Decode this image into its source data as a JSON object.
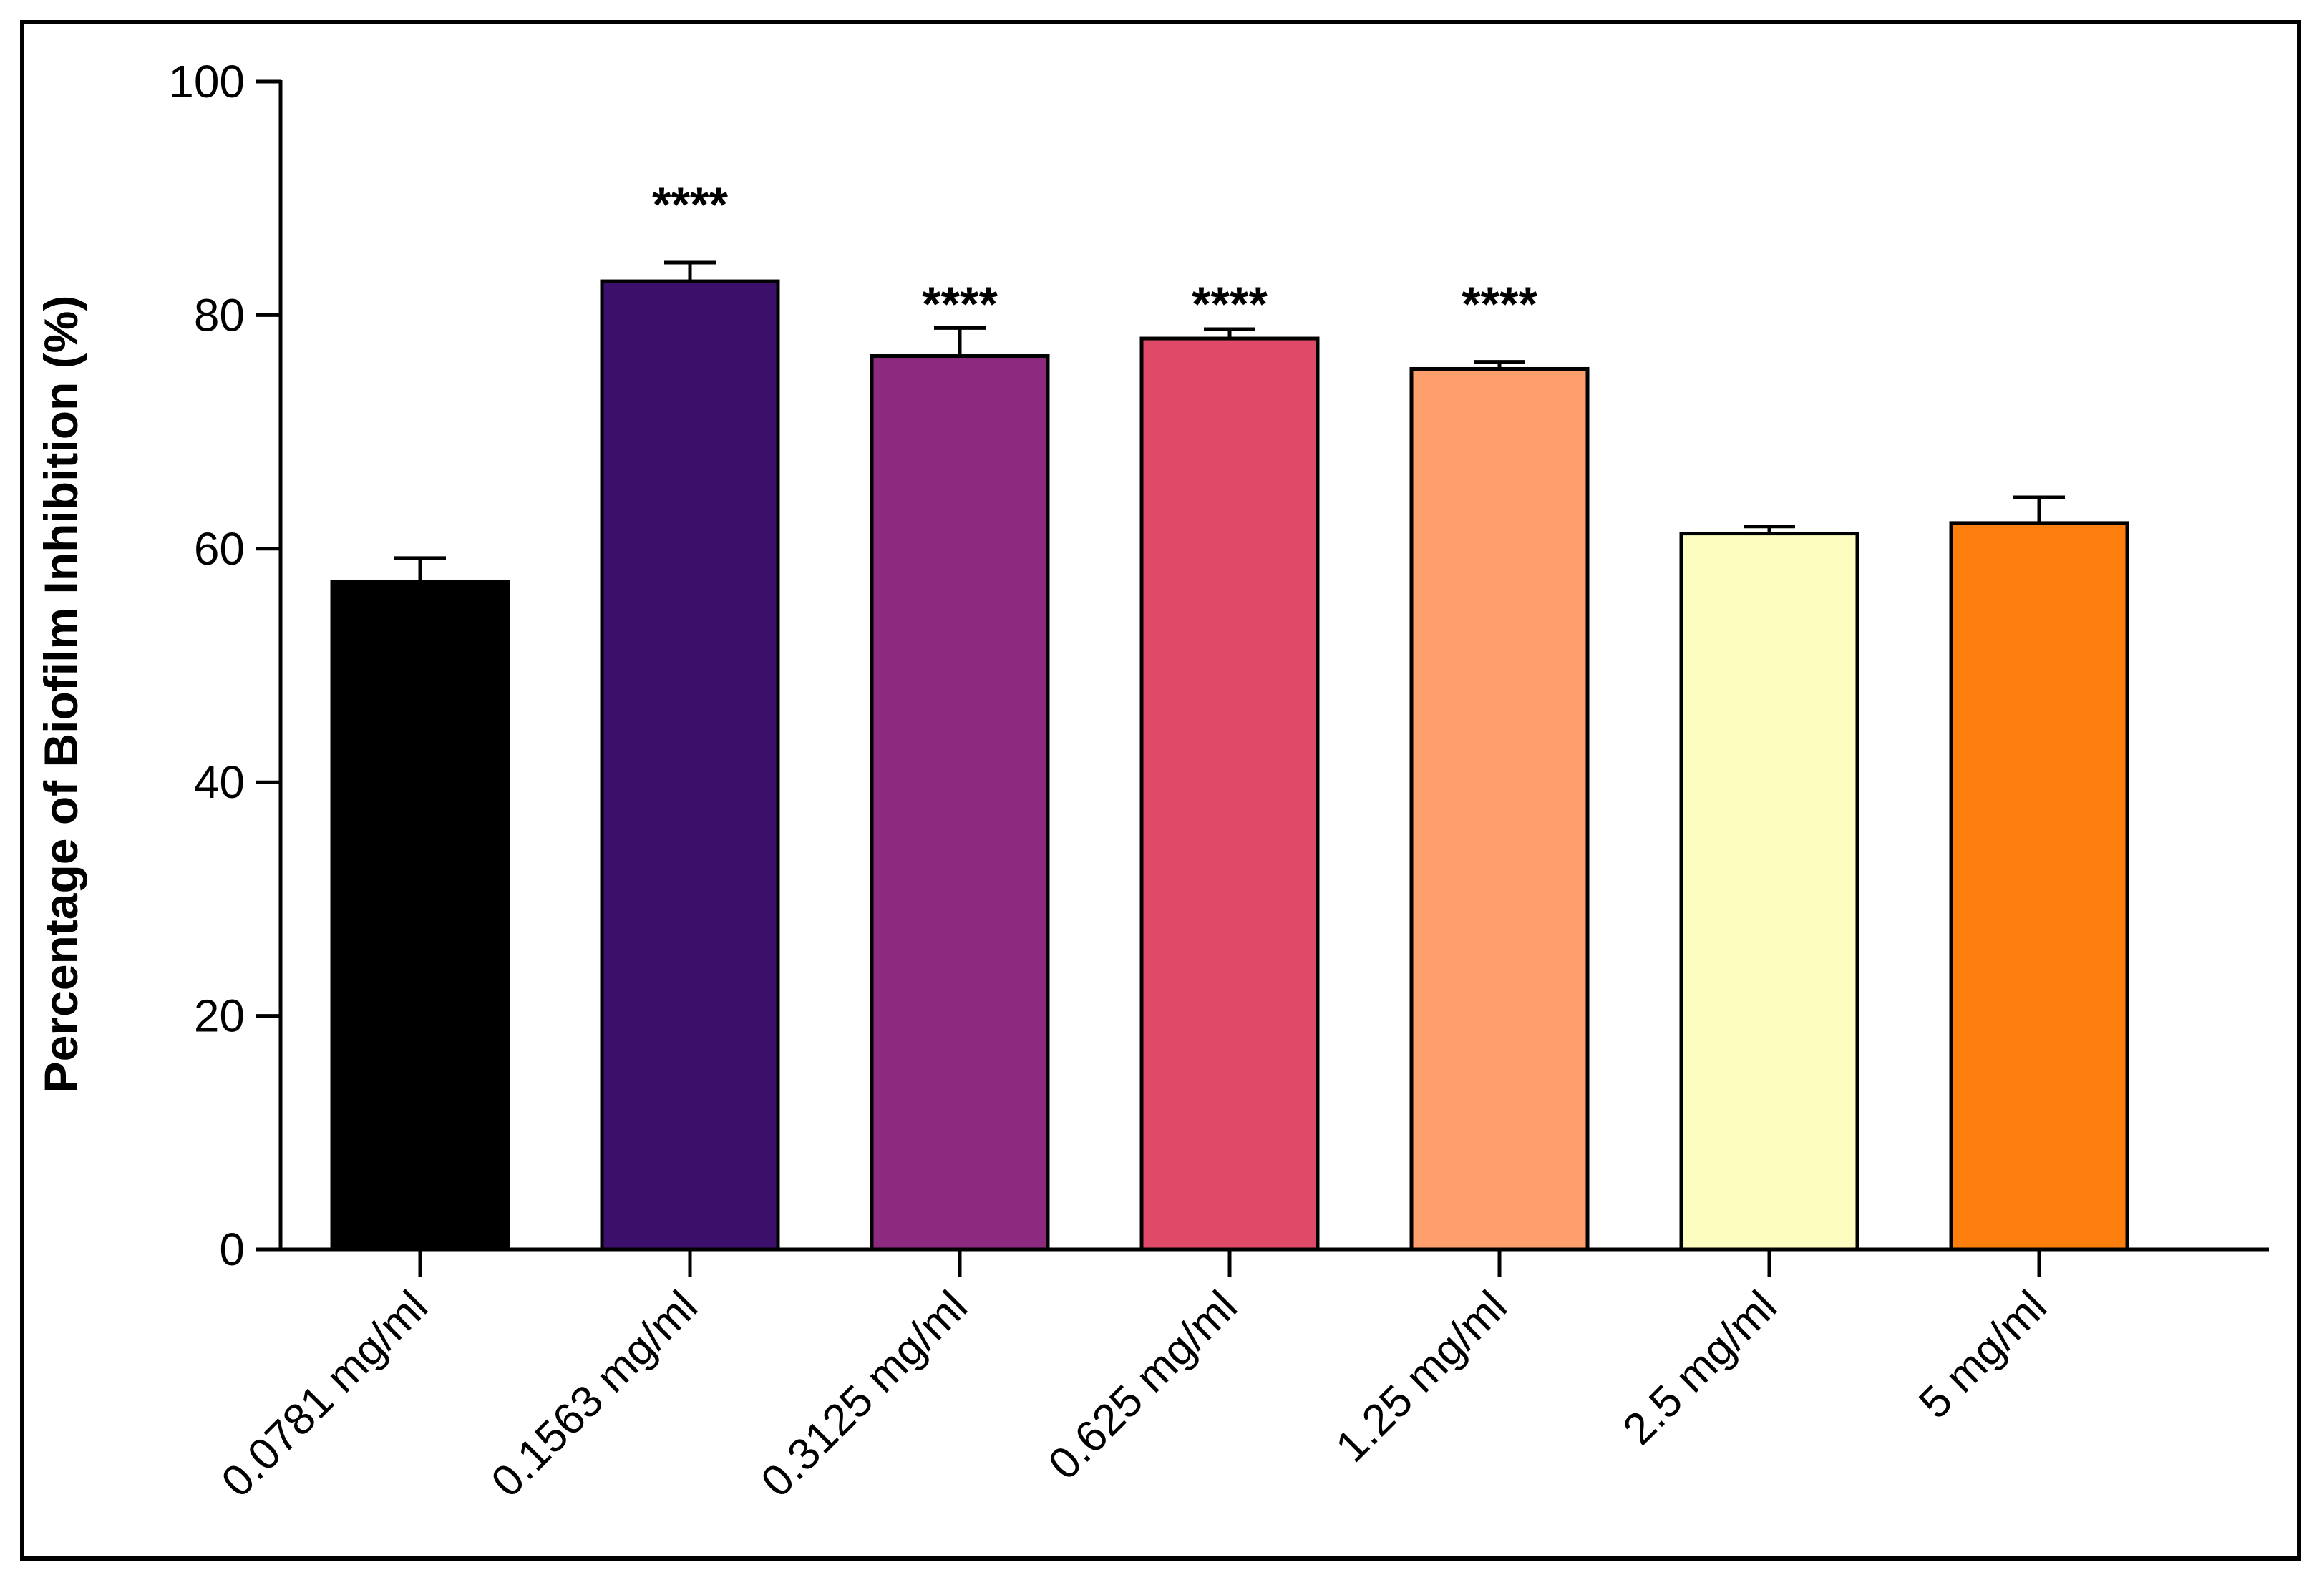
{
  "chart_data": {
    "type": "bar",
    "title": "",
    "xlabel": "",
    "ylabel": "Percentage of Biofilm Inhibition (%)",
    "ylim": [
      0,
      100
    ],
    "yticks": [
      "0",
      "20",
      "40",
      "60",
      "80",
      "100"
    ],
    "yticks_values": [
      0,
      20,
      40,
      60,
      80,
      100
    ],
    "grid": false,
    "legend": "none",
    "categories": [
      "0.0781 mg/ml",
      "0.1563 mg/ml",
      "0.3125 mg/ml",
      "0.625 mg/ml",
      "1.25 mg/ml",
      "2.5 mg/ml",
      "5 mg/ml"
    ],
    "values": [
      57.2,
      82.9,
      76.5,
      78.0,
      75.4,
      61.3,
      62.2
    ],
    "errors": [
      2.0,
      1.6,
      2.4,
      0.8,
      0.6,
      0.6,
      2.2
    ],
    "colors": [
      "#000000",
      "#3c0f6b",
      "#8b2a7e",
      "#de4a67",
      "#fe9f6d",
      "#fcfdbf",
      "#ff7f0e"
    ],
    "annotations": [
      "",
      "****",
      "****",
      "****",
      "****",
      "",
      ""
    ]
  }
}
